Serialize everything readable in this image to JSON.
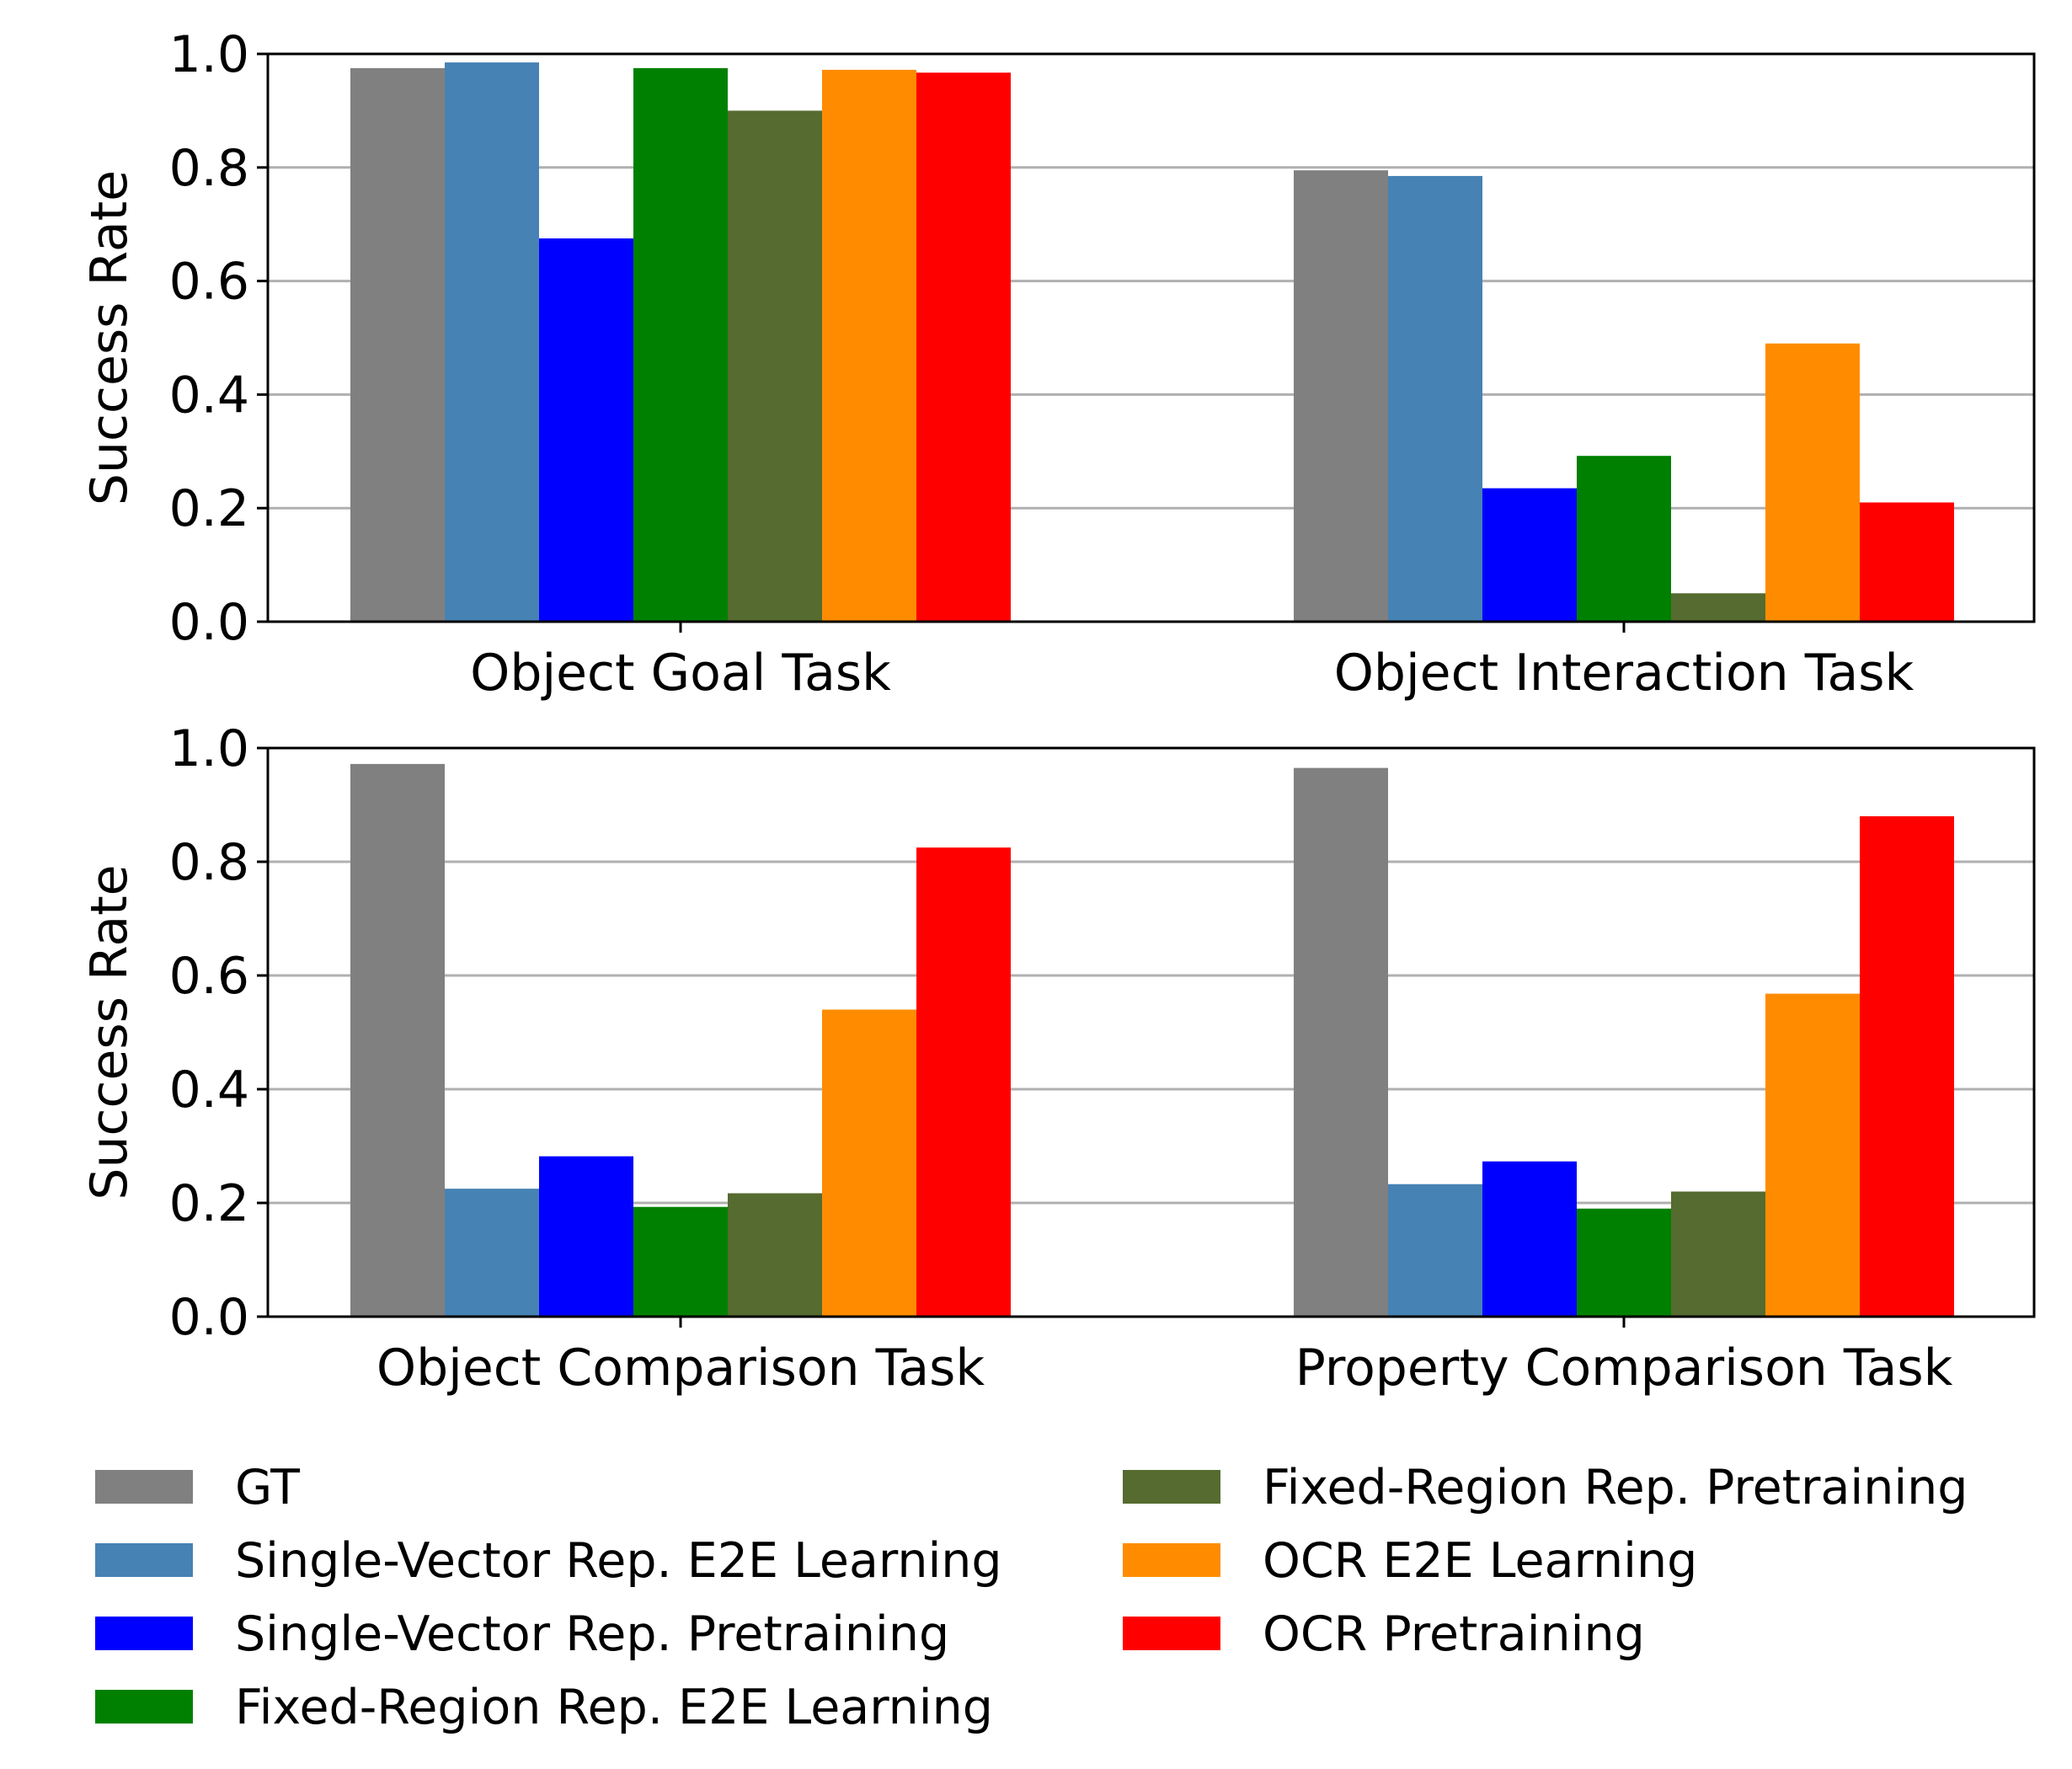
{
  "chart_data": {
    "type": "bar",
    "ylabel": "Success Rate",
    "ylim": [
      0,
      1.0
    ],
    "yticks": [
      "0.0",
      "0.2",
      "0.4",
      "0.6",
      "0.8",
      "1.0"
    ],
    "grid": "horizontal",
    "legend_position": "bottom",
    "series": [
      {
        "name": "GT",
        "color": "#808080"
      },
      {
        "name": "Single-Vector Rep. E2E Learning",
        "color": "#4682b4"
      },
      {
        "name": "Single-Vector Rep. Pretraining",
        "color": "#0000ff"
      },
      {
        "name": "Fixed-Region Rep. E2E Learning",
        "color": "#008000"
      },
      {
        "name": "Fixed-Region Rep. Pretraining",
        "color": "#556b2f"
      },
      {
        "name": "OCR E2E Learning",
        "color": "#ff8c00"
      },
      {
        "name": "OCR Pretraining",
        "color": "#ff0000"
      }
    ],
    "panels": [
      {
        "categories": [
          "Object Goal Task",
          "Object Interaction Task"
        ],
        "values": [
          [
            0.975,
            0.985,
            0.675,
            0.975,
            0.9,
            0.972,
            0.967
          ],
          [
            0.795,
            0.785,
            0.235,
            0.292,
            0.05,
            0.49,
            0.21
          ]
        ]
      },
      {
        "categories": [
          "Object Comparison Task",
          "Property Comparison Task"
        ],
        "values": [
          [
            0.972,
            0.225,
            0.282,
            0.193,
            0.217,
            0.54,
            0.825
          ],
          [
            0.965,
            0.233,
            0.273,
            0.19,
            0.22,
            0.568,
            0.88
          ]
        ]
      }
    ]
  }
}
